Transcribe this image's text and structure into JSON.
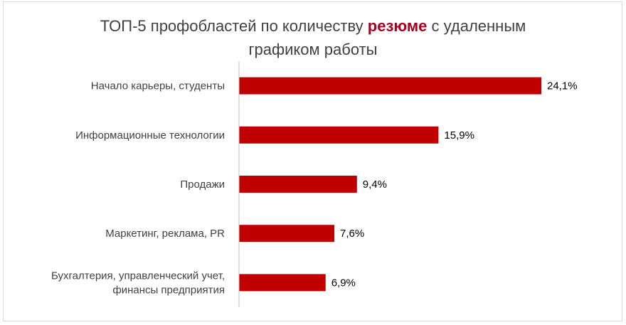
{
  "chart_data": {
    "type": "bar",
    "orientation": "horizontal",
    "title": {
      "part1": "ТОП-5 профобластей по количеству ",
      "highlight": "резюме",
      "part2": " с удаленным",
      "line2": "графиком работы"
    },
    "categories": [
      [
        "Начало карьеры, студенты"
      ],
      [
        "Информационные технологии"
      ],
      [
        "Продажи"
      ],
      [
        "Маркетинг, реклама, PR"
      ],
      [
        "Бухгалтерия, управленческий учет,",
        "финансы предприятия"
      ]
    ],
    "values": [
      24.1,
      15.9,
      9.4,
      7.6,
      6.9
    ],
    "data_labels": [
      "24,1%",
      "15,9%",
      "9,4%",
      "7,6%",
      "6,9%"
    ],
    "unit": "%",
    "xlim": [
      0,
      24.1
    ],
    "grid": false,
    "legend": "none",
    "colors": {
      "bar": "#c00000",
      "title_highlight": "#a50021",
      "text": "#404040",
      "axis": "#bfbfbf"
    }
  }
}
